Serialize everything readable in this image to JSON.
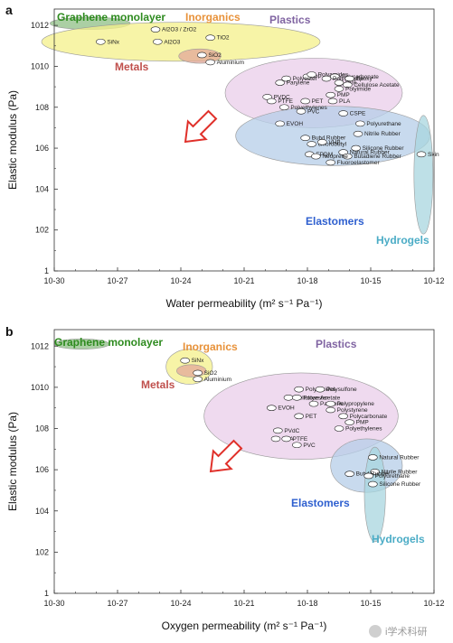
{
  "chart_data": [
    {
      "panel_label": "a",
      "type": "scatter",
      "xlabel": "Water permeability (m² s⁻¹ Pa⁻¹)",
      "ylabel": "Elastic modulus (Pa)",
      "xscale": "log",
      "yscale": "log",
      "xlim_exp": [
        -30,
        -12
      ],
      "ylim_exp": [
        0,
        12.8
      ],
      "x_ticks": [
        "10-30",
        "10-27",
        "10-24",
        "10-21",
        "10-18",
        "10-15",
        "10-12"
      ],
      "y_ticks": [
        "1",
        "102",
        "104",
        "106",
        "108",
        "1010",
        "1012"
      ],
      "grid": false,
      "annotation_arrow": "down-left",
      "groups": [
        {
          "label": "Graphene monolayer",
          "color": "#2e8b1f",
          "fill": "#8fbf86",
          "cx": -28.3,
          "cy": 12.1,
          "rx": 1.9,
          "ry": 0.3
        },
        {
          "label": "Inorganics",
          "color": "#e8923a",
          "fill": "#f4f08a",
          "cx": -24.0,
          "cy": 11.2,
          "rx": 6.6,
          "ry": 0.95
        },
        {
          "label": "Metals",
          "color": "#c0504d",
          "fill": "#e3a89a",
          "cx": -23.1,
          "cy": 10.5,
          "rx": 1.0,
          "ry": 0.35
        },
        {
          "label": "Plastics",
          "color": "#8064a2",
          "fill": "#e9cde9",
          "cx": -17.7,
          "cy": 8.7,
          "rx": 4.2,
          "ry": 1.7
        },
        {
          "label": "Elastomers",
          "color": "#2e5fcf",
          "fill": "#b6cde8",
          "cx": -16.8,
          "cy": 6.6,
          "rx": 4.6,
          "ry": 1.45
        },
        {
          "label": "Hydrogels",
          "color": "#4bacc6",
          "fill": "#a8d5df",
          "cx": -12.5,
          "cy": 4.7,
          "rx": 0.45,
          "ry": 2.9
        }
      ],
      "materials": [
        {
          "label": "Al2O3 / ZrO2",
          "x": -25.2,
          "y": 11.8
        },
        {
          "label": "TiO2",
          "x": -22.6,
          "y": 11.4
        },
        {
          "label": "SiNx",
          "x": -27.8,
          "y": 11.2
        },
        {
          "label": "Al2O3",
          "x": -25.1,
          "y": 11.2
        },
        {
          "label": "SiO2",
          "x": -23.0,
          "y": 10.55
        },
        {
          "label": "Aluminium",
          "x": -22.6,
          "y": 10.2
        },
        {
          "label": "PP",
          "x": -18.0,
          "y": 9.5
        },
        {
          "label": "Polyamides",
          "x": -17.8,
          "y": 9.6
        },
        {
          "label": "Polycarbonate",
          "x": -16.7,
          "y": 9.5
        },
        {
          "label": "Polyester",
          "x": -19.0,
          "y": 9.4
        },
        {
          "label": "Polystyrene",
          "x": -17.1,
          "y": 9.4
        },
        {
          "label": "Epoxy",
          "x": -16.0,
          "y": 9.4
        },
        {
          "label": "Parylene",
          "x": -19.3,
          "y": 9.2
        },
        {
          "label": "PVA",
          "x": -16.5,
          "y": 9.2
        },
        {
          "label": "Cellulose Acetate",
          "x": -16.1,
          "y": 9.1
        },
        {
          "label": "Polyimide",
          "x": -16.5,
          "y": 8.9
        },
        {
          "label": "PVDC",
          "x": -19.9,
          "y": 8.5
        },
        {
          "label": "PET",
          "x": -18.1,
          "y": 8.3
        },
        {
          "label": "PMP",
          "x": -16.9,
          "y": 8.6
        },
        {
          "label": "PTFE",
          "x": -19.7,
          "y": 8.3
        },
        {
          "label": "PLA",
          "x": -16.8,
          "y": 8.3
        },
        {
          "label": "Polyethylenes",
          "x": -19.1,
          "y": 8.0
        },
        {
          "label": "PVC",
          "x": -18.3,
          "y": 7.8
        },
        {
          "label": "EVOH",
          "x": -19.3,
          "y": 7.2
        },
        {
          "label": "CSPE",
          "x": -16.3,
          "y": 7.7
        },
        {
          "label": "Polyurethane",
          "x": -15.5,
          "y": 7.2
        },
        {
          "label": "Nitrile Rubber",
          "x": -15.6,
          "y": 6.7
        },
        {
          "label": "Butyl Rubber",
          "x": -18.1,
          "y": 6.5
        },
        {
          "label": "Silicone Rubber",
          "x": -15.7,
          "y": 6.0
        },
        {
          "label": "chlorobutyl",
          "x": -17.8,
          "y": 6.2
        },
        {
          "label": "VHB",
          "x": -17.3,
          "y": 6.3
        },
        {
          "label": "Natural Rubber",
          "x": -16.3,
          "y": 5.8
        },
        {
          "label": "Skin",
          "x": -12.6,
          "y": 5.7
        },
        {
          "label": "Butadiene Rubber",
          "x": -16.1,
          "y": 5.6
        },
        {
          "label": "EPDM",
          "x": -17.9,
          "y": 5.7
        },
        {
          "label": "Neoprene",
          "x": -17.6,
          "y": 5.6
        },
        {
          "label": "Fluoroelastomer",
          "x": -16.9,
          "y": 5.3
        }
      ]
    },
    {
      "panel_label": "b",
      "type": "scatter",
      "xlabel": "Oxygen permeability (m² s⁻¹ Pa⁻¹)",
      "ylabel": "Elastic modulus (Pa)",
      "xscale": "log",
      "yscale": "log",
      "xlim_exp": [
        -30,
        -12
      ],
      "ylim_exp": [
        0,
        12.8
      ],
      "x_ticks": [
        "10-30",
        "10-27",
        "10-24",
        "10-21",
        "10-18",
        "10-15",
        "10-12"
      ],
      "y_ticks": [
        "1",
        "102",
        "104",
        "106",
        "108",
        "1010",
        "1012"
      ],
      "grid": false,
      "annotation_arrow": "down-left",
      "groups": [
        {
          "label": "Graphene monolayer",
          "color": "#2e8b1f",
          "fill": "#8fbf86",
          "cx": -28.7,
          "cy": 12.1,
          "rx": 1.3,
          "ry": 0.25
        },
        {
          "label": "Inorganics",
          "color": "#e8923a",
          "fill": "#f4f08a",
          "cx": -23.6,
          "cy": 11.0,
          "rx": 1.1,
          "ry": 0.85
        },
        {
          "label": "Metals",
          "color": "#c0504d",
          "fill": "#e3a89a",
          "cx": -23.5,
          "cy": 10.8,
          "rx": 0.7,
          "ry": 0.3
        },
        {
          "label": "Plastics",
          "color": "#8064a2",
          "fill": "#e9cde9",
          "cx": -18.3,
          "cy": 8.6,
          "rx": 4.6,
          "ry": 2.1
        },
        {
          "label": "Elastomers",
          "color": "#2e5fcf",
          "fill": "#b6cde8",
          "cx": -15.2,
          "cy": 6.2,
          "rx": 1.7,
          "ry": 1.3
        },
        {
          "label": "Hydrogels",
          "color": "#4bacc6",
          "fill": "#a8d5df",
          "cx": -14.8,
          "cy": 4.8,
          "rx": 0.5,
          "ry": 2.3
        }
      ],
      "materials": [
        {
          "label": "Polyamides",
          "x": -18.4,
          "y": 9.9
        },
        {
          "label": "Polysulfone",
          "x": -17.4,
          "y": 9.9
        },
        {
          "label": "SiNx",
          "x": -23.8,
          "y": 11.3
        },
        {
          "label": "Cellulose Acetate",
          "x": -18.9,
          "y": 9.5
        },
        {
          "label": "Polyester",
          "x": -18.5,
          "y": 9.5
        },
        {
          "label": "Parylene",
          "x": -17.7,
          "y": 9.2
        },
        {
          "label": "Polypropylene",
          "x": -16.9,
          "y": 9.2
        },
        {
          "label": "SiO2",
          "x": -23.2,
          "y": 10.7
        },
        {
          "label": "Aluminium",
          "x": -23.2,
          "y": 10.4
        },
        {
          "label": "Polystyrene",
          "x": -16.9,
          "y": 8.9
        },
        {
          "label": "EVOH",
          "x": -19.7,
          "y": 9.0
        },
        {
          "label": "Polycarbonate",
          "x": -16.3,
          "y": 8.6
        },
        {
          "label": "PET",
          "x": -18.4,
          "y": 8.6
        },
        {
          "label": "PMP",
          "x": -16.0,
          "y": 8.3
        },
        {
          "label": "PVdC",
          "x": -19.4,
          "y": 7.9
        },
        {
          "label": "Polyethylenes",
          "x": -16.5,
          "y": 8.0
        },
        {
          "label": "PVA",
          "x": -19.5,
          "y": 7.5
        },
        {
          "label": "PTFE",
          "x": -19.0,
          "y": 7.5
        },
        {
          "label": "PVC",
          "x": -18.5,
          "y": 7.2
        },
        {
          "label": "Natural Rubber",
          "x": -14.9,
          "y": 6.6
        },
        {
          "label": "Nitrile Rubber",
          "x": -14.8,
          "y": 5.9
        },
        {
          "label": "Butyl Rubber",
          "x": -16.0,
          "y": 5.8
        },
        {
          "label": "Polyurethane",
          "x": -15.1,
          "y": 5.7
        },
        {
          "label": "Silicone Rubber",
          "x": -14.9,
          "y": 5.3
        }
      ]
    }
  ],
  "watermark": "i学术科研"
}
